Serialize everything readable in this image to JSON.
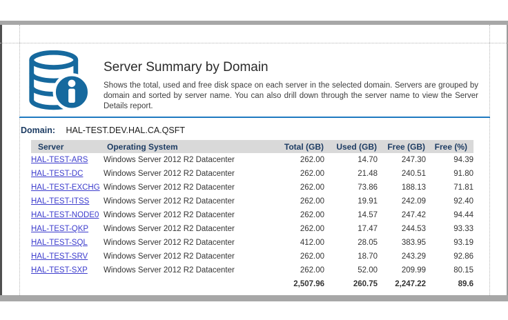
{
  "page": {
    "title": "Server Summary by Domain",
    "description": "Shows the total, used and free disk space on each server in the selected domain. Servers are grouped by domain and sorted by server name. You can also drill down through the server name to view the Server Details report.",
    "domain_label": "Domain:",
    "domain_value": "HAL-TEST.DEV.HAL.CA.QSFT",
    "icon": "database-info-icon"
  },
  "colors": {
    "accent_rule_blue": "#1d79c0",
    "icon_blue": "#16699e",
    "navy_text": "#1d3c63",
    "link_blue": "#3c3ccd",
    "header_bg": "#d9d9d9"
  },
  "table": {
    "columns": [
      "Server",
      "Operating System",
      "Total (GB)",
      "Used (GB)",
      "Free (GB)",
      "Free (%)"
    ],
    "rows": [
      {
        "server": "HAL-TEST-ARS",
        "os": "Windows Server 2012 R2 Datacenter",
        "total": "262.00",
        "used": "14.70",
        "free": "247.30",
        "free_pct": "94.39"
      },
      {
        "server": "HAL-TEST-DC",
        "os": "Windows Server 2012 R2 Datacenter",
        "total": "262.00",
        "used": "21.48",
        "free": "240.51",
        "free_pct": "91.80"
      },
      {
        "server": "HAL-TEST-EXCHG",
        "os": "Windows Server 2012 R2 Datacenter",
        "total": "262.00",
        "used": "73.86",
        "free": "188.13",
        "free_pct": "71.81"
      },
      {
        "server": "HAL-TEST-ITSS",
        "os": "Windows Server 2012 R2 Datacenter",
        "total": "262.00",
        "used": "19.91",
        "free": "242.09",
        "free_pct": "92.40"
      },
      {
        "server": "HAL-TEST-NODE0",
        "os": "Windows Server 2012 R2 Datacenter",
        "total": "262.00",
        "used": "14.57",
        "free": "247.42",
        "free_pct": "94.44"
      },
      {
        "server": "HAL-TEST-QKP",
        "os": "Windows Server 2012 R2 Datacenter",
        "total": "262.00",
        "used": "17.47",
        "free": "244.53",
        "free_pct": "93.33"
      },
      {
        "server": "HAL-TEST-SQL",
        "os": "Windows Server 2012 R2 Datacenter",
        "total": "412.00",
        "used": "28.05",
        "free": "383.95",
        "free_pct": "93.19"
      },
      {
        "server": "HAL-TEST-SRV",
        "os": "Windows Server 2012 R2 Datacenter",
        "total": "262.00",
        "used": "18.70",
        "free": "243.29",
        "free_pct": "92.86"
      },
      {
        "server": "HAL-TEST-SXP",
        "os": "Windows Server 2012 R2 Datacenter",
        "total": "262.00",
        "used": "52.00",
        "free": "209.99",
        "free_pct": "80.15"
      }
    ],
    "totals": {
      "total": "2,507.96",
      "used": "260.75",
      "free": "2,247.22",
      "free_pct": "89.6"
    }
  }
}
